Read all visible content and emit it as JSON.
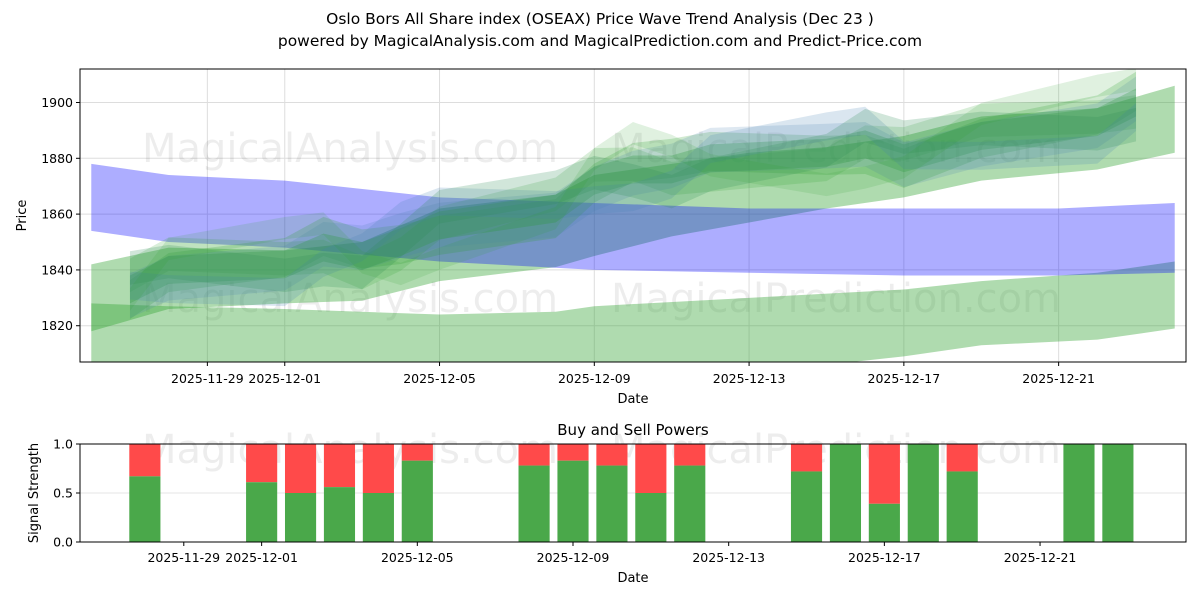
{
  "title": "Oslo Bors All Share index (OSEAX) Price Wave Trend Analysis (Dec 23 )",
  "subtitle": "powered by MagicalAnalysis.com and MagicalPrediction.com and Predict-Price.com",
  "watermarks": [
    "MagicalAnalysis.com",
    "MagicalPrediction.com"
  ],
  "chart_data": [
    {
      "type": "area",
      "xlabel": "Date",
      "ylabel": "Price",
      "xlim": [
        "2025-11-25T17:00",
        "2025-12-24T07:00"
      ],
      "ylim": [
        1807,
        1912
      ],
      "grid": true,
      "xticks": [
        "2025-11-29",
        "2025-12-01",
        "2025-12-05",
        "2025-12-09",
        "2025-12-13",
        "2025-12-17",
        "2025-12-21"
      ],
      "yticks": [
        1820,
        1840,
        1860,
        1880,
        1900
      ],
      "bands": [
        {
          "name": "lower-green-band",
          "color": "#2ca02c",
          "opacity": 0.38,
          "x": [
            "2025-11-26T00:00",
            "2025-11-28",
            "2025-12-01",
            "2025-12-05",
            "2025-12-08",
            "2025-12-09",
            "2025-12-13",
            "2025-12-17",
            "2025-12-19",
            "2025-12-22",
            "2025-12-24"
          ],
          "upper": [
            1828,
            1827,
            1826,
            1824,
            1825,
            1827,
            1830,
            1833,
            1836,
            1839,
            1843
          ],
          "lower": [
            1790,
            1792,
            1794,
            1796,
            1798,
            1800,
            1803,
            1809,
            1813,
            1815,
            1819
          ]
        },
        {
          "name": "wide-green-band",
          "color": "#2ca02c",
          "opacity": 0.38,
          "x": [
            "2025-11-26T00:00",
            "2025-11-28",
            "2025-12-01",
            "2025-12-03",
            "2025-12-05",
            "2025-12-08",
            "2025-12-09",
            "2025-12-11",
            "2025-12-13",
            "2025-12-15",
            "2025-12-17",
            "2025-12-19",
            "2025-12-22",
            "2025-12-24"
          ],
          "upper": [
            1842,
            1848,
            1847,
            1850,
            1862,
            1867,
            1874,
            1878,
            1882,
            1884,
            1888,
            1895,
            1898,
            1906
          ],
          "lower": [
            1818,
            1826,
            1828,
            1829,
            1836,
            1841,
            1845,
            1852,
            1857,
            1862,
            1866,
            1872,
            1876,
            1882
          ]
        },
        {
          "name": "blue-band",
          "color": "#0000ff",
          "opacity": 0.32,
          "x": [
            "2025-11-26T00:00",
            "2025-11-28",
            "2025-12-01",
            "2025-12-05",
            "2025-12-09",
            "2025-12-13",
            "2025-12-17",
            "2025-12-21",
            "2025-12-24"
          ],
          "upper": [
            1878,
            1874,
            1872,
            1866,
            1864,
            1862,
            1862,
            1862,
            1864
          ],
          "lower": [
            1854,
            1850,
            1848,
            1843,
            1840,
            1839,
            1838,
            1838,
            1839
          ]
        }
      ],
      "wave_center": {
        "x": [
          "2025-11-27",
          "2025-11-28",
          "2025-12-01",
          "2025-12-02",
          "2025-12-03",
          "2025-12-04",
          "2025-12-05",
          "2025-12-08",
          "2025-12-09",
          "2025-12-10",
          "2025-12-11",
          "2025-12-12",
          "2025-12-15",
          "2025-12-16",
          "2025-12-17",
          "2025-12-19",
          "2025-12-22",
          "2025-12-23"
        ],
        "y": [
          1833,
          1840,
          1842,
          1848,
          1845,
          1850,
          1856,
          1862,
          1872,
          1876,
          1876,
          1880,
          1882,
          1885,
          1880,
          1888,
          1893,
          1900
        ]
      },
      "wave_variants": [
        {
          "offset": 0,
          "halfwidth": 5,
          "color": "#2ca02c",
          "opacity": 0.3
        },
        {
          "offset": 6,
          "halfwidth": 6,
          "color": "#2ca02c",
          "opacity": 0.18
        },
        {
          "offset": -4,
          "halfwidth": 7,
          "color": "#2ca02c",
          "opacity": 0.22
        },
        {
          "offset": 10,
          "halfwidth": 5,
          "color": "#4682b4",
          "opacity": 0.2
        },
        {
          "offset": 3,
          "halfwidth": 8,
          "color": "#4682b4",
          "opacity": 0.18
        },
        {
          "offset": -8,
          "halfwidth": 6,
          "color": "#2e8b57",
          "opacity": 0.22
        },
        {
          "offset": 13,
          "halfwidth": 4,
          "color": "#2ca02c",
          "opacity": 0.15
        }
      ]
    },
    {
      "type": "bar",
      "title": "Buy and Sell Powers",
      "xlabel": "Date",
      "ylabel": "Signal Strength",
      "xlim": [
        "2025-11-26T08:00",
        "2025-12-24T18:00"
      ],
      "ylim": [
        0,
        1
      ],
      "yticks": [
        "0.0",
        "0.5",
        "1.0"
      ],
      "xticks": [
        "2025-11-29",
        "2025-12-01",
        "2025-12-05",
        "2025-12-09",
        "2025-12-13",
        "2025-12-17",
        "2025-12-21"
      ],
      "buy_color": "#4aa84a",
      "sell_color": "#ff4a4a",
      "dates": [
        "2025-11-28",
        "2025-12-01",
        "2025-12-02",
        "2025-12-03",
        "2025-12-04",
        "2025-12-05",
        "2025-12-08",
        "2025-12-09",
        "2025-12-10",
        "2025-12-11",
        "2025-12-12",
        "2025-12-15",
        "2025-12-16",
        "2025-12-17",
        "2025-12-18",
        "2025-12-19",
        "2025-12-22",
        "2025-12-23"
      ],
      "buy": [
        0.67,
        0.61,
        0.5,
        0.56,
        0.5,
        0.83,
        0.78,
        0.83,
        0.78,
        0.5,
        0.78,
        0.72,
        1.0,
        0.39,
        1.0,
        0.72,
        1.0,
        1.0
      ]
    }
  ]
}
